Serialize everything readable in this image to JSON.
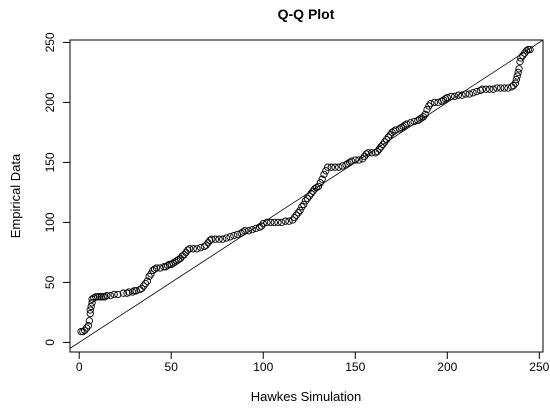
{
  "chart_data": {
    "type": "scatter",
    "title": "Q-Q Plot",
    "xlabel": "Hawkes Simulation",
    "ylabel": "Empirical Data",
    "xlim": [
      -5,
      252
    ],
    "ylim": [
      -8,
      252
    ],
    "xticks": [
      0,
      50,
      100,
      150,
      200,
      250
    ],
    "yticks": [
      0,
      50,
      100,
      150,
      200,
      250
    ],
    "grid": false,
    "marker": "open-circle",
    "reference_line": {
      "intercept": 0,
      "slope": 1
    },
    "x": [
      1,
      2,
      3,
      4,
      5,
      5.5,
      6,
      6,
      6.5,
      7,
      7,
      8,
      9,
      10,
      11,
      12,
      13,
      14,
      15,
      17,
      19,
      21,
      24,
      26,
      27,
      29,
      30,
      31,
      33,
      34,
      35,
      36,
      37,
      38,
      39,
      40,
      41,
      42,
      44,
      46,
      47,
      48,
      49,
      50,
      51,
      52,
      53,
      54,
      55,
      56,
      57,
      58,
      59,
      60,
      62,
      64,
      66,
      68,
      69,
      70,
      71,
      72,
      74,
      76,
      78,
      80,
      82,
      84,
      86,
      88,
      89,
      90,
      92,
      94,
      96,
      98,
      99,
      100,
      102,
      104,
      106,
      108,
      110,
      112,
      114,
      116,
      117,
      118,
      119,
      120,
      121,
      122,
      123,
      124,
      125,
      126,
      127,
      128,
      129,
      130,
      131,
      132,
      133,
      134,
      135,
      137,
      139,
      141,
      143,
      145,
      146,
      147,
      148,
      150,
      152,
      154,
      155,
      156,
      157,
      159,
      161,
      162,
      163,
      164,
      165,
      166,
      167,
      168,
      169,
      170,
      171,
      172,
      174,
      175,
      176,
      177,
      178,
      180,
      182,
      184,
      185,
      186,
      187,
      188,
      189,
      190,
      191,
      193,
      195,
      197,
      198,
      199,
      200,
      202,
      204,
      206,
      208,
      210,
      212,
      214,
      216,
      218,
      219,
      221,
      223,
      225,
      227,
      229,
      231,
      233,
      235,
      236,
      237,
      237.5,
      238,
      238.5,
      239,
      239.5,
      240,
      241,
      242,
      243,
      244,
      245
    ],
    "y": [
      9,
      9,
      10,
      12,
      14,
      18,
      24,
      27,
      30,
      33,
      36,
      37,
      38,
      38,
      38,
      38,
      38,
      38,
      39,
      39,
      40,
      40,
      41,
      41,
      42,
      42,
      43,
      43,
      44,
      45,
      47,
      49,
      51,
      55,
      57,
      60,
      61,
      62,
      62,
      63,
      63,
      64,
      65,
      65,
      66,
      67,
      68,
      69,
      70,
      72,
      73,
      75,
      77,
      78,
      78,
      78,
      79,
      80,
      81,
      83,
      85,
      86,
      86,
      86,
      86,
      87,
      88,
      89,
      90,
      91,
      92,
      93,
      93,
      94,
      95,
      96,
      97,
      99,
      100,
      100,
      100,
      100,
      100,
      101,
      101,
      102,
      104,
      106,
      108,
      110,
      113,
      115,
      118,
      120,
      122,
      124,
      126,
      128,
      129,
      130,
      133,
      136,
      140,
      143,
      146,
      146,
      146,
      146,
      147,
      148,
      149,
      150,
      151,
      152,
      152,
      153,
      155,
      157,
      158,
      158,
      158,
      159,
      161,
      163,
      165,
      167,
      169,
      171,
      173,
      175,
      176,
      177,
      178,
      179,
      180,
      181,
      182,
      183,
      184,
      185,
      186,
      187,
      188,
      190,
      194,
      197,
      199,
      200,
      200,
      201,
      202,
      203,
      204,
      205,
      205,
      206,
      206,
      207,
      207,
      208,
      209,
      210,
      211,
      211,
      211,
      211,
      212,
      212,
      212,
      212,
      213,
      214,
      216,
      219,
      222,
      225,
      228,
      234,
      237,
      239,
      241,
      243,
      244,
      244
    ]
  }
}
